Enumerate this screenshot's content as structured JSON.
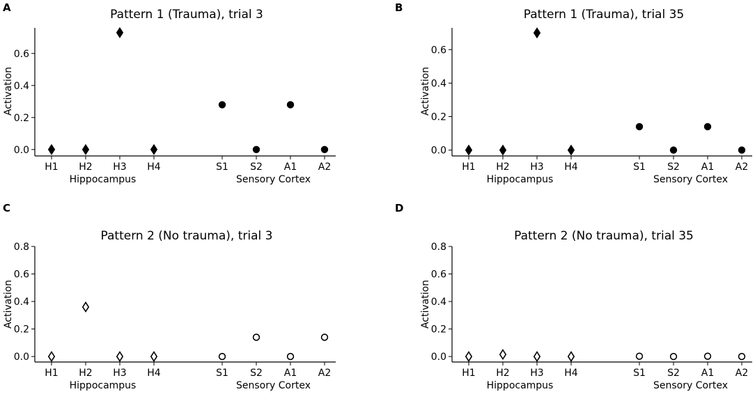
{
  "chart_data": [
    {
      "panel": "A",
      "type": "scatter",
      "title": "Pattern 1 (Trauma), trial 3",
      "ylabel": "Activation",
      "categories": [
        "H1",
        "H2",
        "H3",
        "H4",
        "S1",
        "S2",
        "A1",
        "A2"
      ],
      "groups": [
        "Hippocampus",
        "Sensory Cortex"
      ],
      "ylim": [
        -0.04,
        0.76
      ],
      "yticks": [
        0.0,
        0.2,
        0.4,
        0.6
      ],
      "ytick_labels": [
        "0.0",
        "0.2",
        "0.4",
        "0.6"
      ],
      "series": [
        {
          "name": "Hippocampus",
          "marker": "diamond",
          "filled": true,
          "values": [
            0.0,
            0.0,
            0.73,
            0.0
          ]
        },
        {
          "name": "Sensory Cortex",
          "marker": "circle",
          "filled": true,
          "values": [
            0.28,
            0.0,
            0.28,
            0.0
          ]
        }
      ]
    },
    {
      "panel": "B",
      "type": "scatter",
      "title": "Pattern 1 (Trauma), trial 35",
      "ylabel": "Activation",
      "categories": [
        "H1",
        "H2",
        "H3",
        "H4",
        "S1",
        "S2",
        "A1",
        "A2"
      ],
      "groups": [
        "Hippocampus",
        "Sensory Cortex"
      ],
      "ylim": [
        -0.035,
        0.73
      ],
      "yticks": [
        0.0,
        0.2,
        0.4,
        0.6
      ],
      "ytick_labels": [
        "0.0",
        "0.2",
        "0.4",
        "0.6"
      ],
      "series": [
        {
          "name": "Hippocampus",
          "marker": "diamond",
          "filled": true,
          "values": [
            0.0,
            0.0,
            0.7,
            0.0
          ]
        },
        {
          "name": "Sensory Cortex",
          "marker": "circle",
          "filled": true,
          "values": [
            0.14,
            0.0,
            0.14,
            0.0
          ]
        }
      ]
    },
    {
      "panel": "C",
      "type": "scatter",
      "title": "Pattern 2 (No trauma), trial 3",
      "ylabel": "Activation",
      "categories": [
        "H1",
        "H2",
        "H3",
        "H4",
        "S1",
        "S2",
        "A1",
        "A2"
      ],
      "groups": [
        "Hippocampus",
        "Sensory Cortex"
      ],
      "ylim": [
        -0.04,
        0.8
      ],
      "yticks": [
        0.0,
        0.2,
        0.4,
        0.6,
        0.8
      ],
      "ytick_labels": [
        "0.0",
        "0.2",
        "0.4",
        "0.6",
        "0.8"
      ],
      "series": [
        {
          "name": "Hippocampus",
          "marker": "diamond",
          "filled": false,
          "values": [
            0.0,
            0.36,
            0.0,
            0.0
          ]
        },
        {
          "name": "Sensory Cortex",
          "marker": "circle",
          "filled": false,
          "values": [
            0.0,
            0.14,
            0.0,
            0.14
          ]
        }
      ]
    },
    {
      "panel": "D",
      "type": "scatter",
      "title": "Pattern 2 (No trauma), trial 35",
      "ylabel": "Activation",
      "categories": [
        "H1",
        "H2",
        "H3",
        "H4",
        "S1",
        "S2",
        "A1",
        "A2"
      ],
      "groups": [
        "Hippocampus",
        "Sensory Cortex"
      ],
      "ylim": [
        -0.04,
        0.8
      ],
      "yticks": [
        0.0,
        0.2,
        0.4,
        0.6,
        0.8
      ],
      "ytick_labels": [
        "0.0",
        "0.2",
        "0.4",
        "0.6",
        "0.8"
      ],
      "series": [
        {
          "name": "Hippocampus",
          "marker": "diamond",
          "filled": false,
          "values": [
            0.0,
            0.015,
            0.0,
            0.0
          ]
        },
        {
          "name": "Sensory Cortex",
          "marker": "circle",
          "filled": false,
          "values": [
            0.002,
            0.0,
            0.002,
            0.0
          ]
        }
      ]
    }
  ]
}
